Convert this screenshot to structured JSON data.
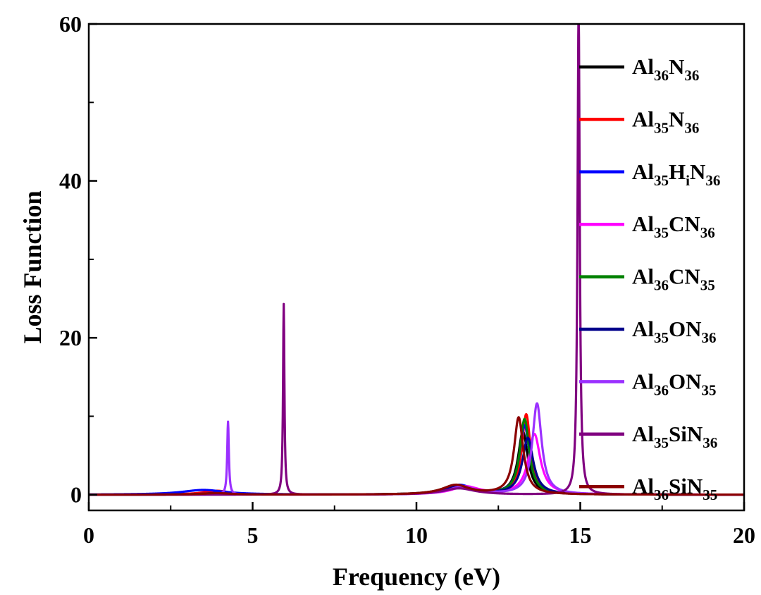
{
  "chart_data": {
    "type": "line",
    "title": "",
    "xlabel": "Frequency (eV)",
    "ylabel": "Loss Function",
    "xlim": [
      0,
      20
    ],
    "ylim": [
      -2,
      60
    ],
    "xticks": [
      0,
      5,
      10,
      15,
      20
    ],
    "yticks": [
      0,
      20,
      40,
      60
    ],
    "grid": false,
    "legend_position": "right",
    "series": [
      {
        "name": "Al36N36",
        "label_parts": [
          {
            "t": "Al",
            "sub": false
          },
          {
            "t": "36",
            "sub": true
          },
          {
            "t": "N",
            "sub": false
          },
          {
            "t": "36",
            "sub": true
          }
        ],
        "color": "#000000",
        "peaks": [
          [
            13.25,
            8.0,
            0.18
          ],
          [
            11.3,
            1.0,
            0.5
          ],
          [
            4.0,
            0.3,
            0.6
          ]
        ]
      },
      {
        "name": "Al35N36",
        "label_parts": [
          {
            "t": "Al",
            "sub": false
          },
          {
            "t": "35",
            "sub": true
          },
          {
            "t": "N",
            "sub": false
          },
          {
            "t": "36",
            "sub": true
          }
        ],
        "color": "#ff0000",
        "peaks": [
          [
            13.35,
            10.2,
            0.16
          ],
          [
            11.3,
            1.1,
            0.5
          ],
          [
            3.9,
            0.5,
            0.5
          ]
        ]
      },
      {
        "name": "Al35HiN36",
        "label_parts": [
          {
            "t": "Al",
            "sub": false
          },
          {
            "t": "35",
            "sub": true
          },
          {
            "t": "H",
            "sub": false
          },
          {
            "t": "i",
            "sub": true
          },
          {
            "t": "N",
            "sub": false
          },
          {
            "t": "36",
            "sub": true
          }
        ],
        "color": "#0000ff",
        "peaks": [
          [
            13.3,
            8.8,
            0.18
          ],
          [
            11.3,
            1.2,
            0.5
          ],
          [
            3.5,
            0.6,
            0.8
          ]
        ]
      },
      {
        "name": "Al35CN36",
        "label_parts": [
          {
            "t": "Al",
            "sub": false
          },
          {
            "t": "35",
            "sub": true
          },
          {
            "t": "CN",
            "sub": false
          },
          {
            "t": "36",
            "sub": true
          }
        ],
        "color": "#ff00ff",
        "peaks": [
          [
            13.6,
            7.7,
            0.22
          ],
          [
            11.5,
            1.0,
            0.5
          ],
          [
            3.9,
            0.2,
            0.5
          ]
        ]
      },
      {
        "name": "Al36CN35",
        "label_parts": [
          {
            "t": "Al",
            "sub": false
          },
          {
            "t": "36",
            "sub": true
          },
          {
            "t": "CN",
            "sub": false
          },
          {
            "t": "35",
            "sub": true
          }
        ],
        "color": "#008000",
        "peaks": [
          [
            13.3,
            9.6,
            0.17
          ],
          [
            11.2,
            1.2,
            0.5
          ],
          [
            3.9,
            0.2,
            0.5
          ]
        ]
      },
      {
        "name": "Al35ON36",
        "label_parts": [
          {
            "t": "Al",
            "sub": false
          },
          {
            "t": "35",
            "sub": true
          },
          {
            "t": "ON",
            "sub": false
          },
          {
            "t": "36",
            "sub": true
          }
        ],
        "color": "#00008b",
        "peaks": [
          [
            13.4,
            7.2,
            0.2
          ],
          [
            11.3,
            1.1,
            0.5
          ],
          [
            3.9,
            0.2,
            0.5
          ]
        ]
      },
      {
        "name": "Al36ON35",
        "label_parts": [
          {
            "t": "Al",
            "sub": false
          },
          {
            "t": "36",
            "sub": true
          },
          {
            "t": "ON",
            "sub": false
          },
          {
            "t": "35",
            "sub": true
          }
        ],
        "color": "#9b30ff",
        "peaks": [
          [
            13.68,
            11.6,
            0.17
          ],
          [
            4.25,
            9.3,
            0.03
          ],
          [
            11.4,
            1.0,
            0.5
          ]
        ]
      },
      {
        "name": "Al35SiN36",
        "label_parts": [
          {
            "t": "Al",
            "sub": false
          },
          {
            "t": "35",
            "sub": true
          },
          {
            "t": "SiN",
            "sub": false
          },
          {
            "t": "36",
            "sub": true
          }
        ],
        "color": "#800080",
        "peaks": [
          [
            14.95,
            62,
            0.04
          ],
          [
            5.95,
            24.3,
            0.025
          ],
          [
            11.3,
            0.8,
            0.6
          ]
        ]
      },
      {
        "name": "Al36SiN35",
        "label_parts": [
          {
            "t": "Al",
            "sub": false
          },
          {
            "t": "36",
            "sub": true
          },
          {
            "t": "SiN",
            "sub": false
          },
          {
            "t": "35",
            "sub": true
          }
        ],
        "color": "#8b0000",
        "peaks": [
          [
            13.12,
            9.8,
            0.17
          ],
          [
            11.2,
            1.2,
            0.5
          ],
          [
            3.9,
            0.2,
            0.5
          ]
        ]
      }
    ]
  }
}
